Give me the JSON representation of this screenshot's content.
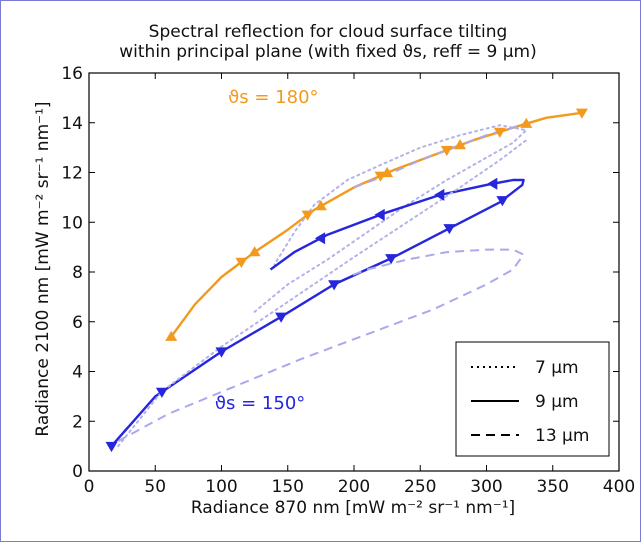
{
  "chart_data": {
    "type": "line",
    "title_line1": "Spectral reflection for cloud surface tilting",
    "title_line2": "within principal plane (with fixed ϑs, reff = 9 µm)",
    "xlabel": "Radiance 870 nm [mW m⁻² sr⁻¹ nm⁻¹]",
    "ylabel": "Radiance 2100 nm [mW m⁻² sr⁻¹ nm⁻¹]",
    "xlim": [
      0,
      400
    ],
    "ylim": [
      0,
      16
    ],
    "xticks": [
      "0",
      "50",
      "100",
      "150",
      "200",
      "250",
      "300",
      "350",
      "400"
    ],
    "yticks": [
      "0",
      "2",
      "4",
      "6",
      "8",
      "10",
      "12",
      "14",
      "16"
    ],
    "grid": false,
    "legend_position": "bottom-right",
    "legend": [
      {
        "label": "7 µm",
        "style": "dotted"
      },
      {
        "label": "9 µm",
        "style": "solid"
      },
      {
        "label": "13 µm",
        "style": "dashed"
      }
    ],
    "annotations": [
      {
        "text": "ϑs = 180°",
        "color": "#f39a1e",
        "x": 105,
        "y": 14.8
      },
      {
        "text": "ϑs = 150°",
        "color": "#2626dd",
        "x": 95,
        "y": 2.5
      }
    ],
    "colors": {
      "orange": "#f39a1e",
      "blue": "#2626dd",
      "light_blue": "#a9a9ee",
      "light_blue_dotted": "#b3b3ea"
    },
    "series": [
      {
        "angle": "180",
        "size": "9",
        "style": "solid",
        "color": "#f39a1e",
        "x": [
          62,
          80,
          100,
          115,
          125,
          150,
          170,
          200,
          230,
          260,
          290,
          320,
          345,
          372
        ],
        "y": [
          5.4,
          6.7,
          7.8,
          8.4,
          8.8,
          9.7,
          10.5,
          11.4,
          12.1,
          12.7,
          13.3,
          13.8,
          14.2,
          14.4
        ],
        "markers_up_x": [
          62,
          125,
          175,
          225,
          280,
          330
        ],
        "markers_down_x": [
          115,
          165,
          220,
          270,
          310,
          372
        ]
      },
      {
        "angle": "180",
        "size": "7",
        "style": "dotted",
        "color": "#b3b3ea",
        "x": [
          125,
          150,
          180,
          210,
          240,
          270,
          300,
          320,
          330,
          310,
          280,
          250,
          220,
          195,
          170,
          155,
          140
        ],
        "y": [
          6.4,
          7.5,
          8.5,
          9.6,
          10.7,
          11.7,
          12.6,
          13.2,
          13.7,
          13.9,
          13.5,
          13.0,
          12.3,
          11.7,
          10.7,
          9.6,
          8.3
        ]
      },
      {
        "angle": "180",
        "size": "13",
        "style": "dashed",
        "color": "#a9a9ee",
        "x": [
          200,
          225,
          250,
          275,
          300,
          320,
          330
        ],
        "y": [
          11.4,
          11.9,
          12.5,
          13.0,
          13.5,
          13.8,
          14.0
        ]
      },
      {
        "angle": "150",
        "size": "9",
        "style": "solid",
        "color": "#2626dd",
        "x": [
          17,
          50,
          100,
          145,
          185,
          230,
          270,
          310,
          327,
          328,
          320,
          300,
          265,
          225,
          180,
          155,
          137
        ],
        "y": [
          1.0,
          3.0,
          4.8,
          6.2,
          7.5,
          8.6,
          9.7,
          10.8,
          11.5,
          11.7,
          11.7,
          11.5,
          11.1,
          10.4,
          9.5,
          8.8,
          8.1
        ],
        "markers_down_x": [
          17,
          55,
          100,
          145,
          185,
          228,
          272,
          312
        ],
        "markers_left_x": [
          305,
          265,
          220,
          175
        ]
      },
      {
        "angle": "150",
        "size": "13",
        "style": "dashed",
        "color": "#a9a9ee",
        "x": [
          22,
          60,
          110,
          160,
          210,
          260,
          300,
          320,
          328,
          320,
          300,
          270,
          240,
          210,
          195
        ],
        "y": [
          1.2,
          2.3,
          3.4,
          4.5,
          5.5,
          6.5,
          7.5,
          8.1,
          8.7,
          8.9,
          8.9,
          8.8,
          8.5,
          8.1,
          7.8
        ]
      },
      {
        "angle": "150",
        "size": "7",
        "style": "dotted",
        "color": "#b3b3ea",
        "x": [
          22,
          55,
          100,
          150,
          200,
          240,
          280,
          310,
          330
        ],
        "y": [
          1.0,
          3.2,
          5.0,
          6.8,
          8.6,
          10.0,
          11.4,
          12.5,
          13.3
        ]
      }
    ]
  }
}
